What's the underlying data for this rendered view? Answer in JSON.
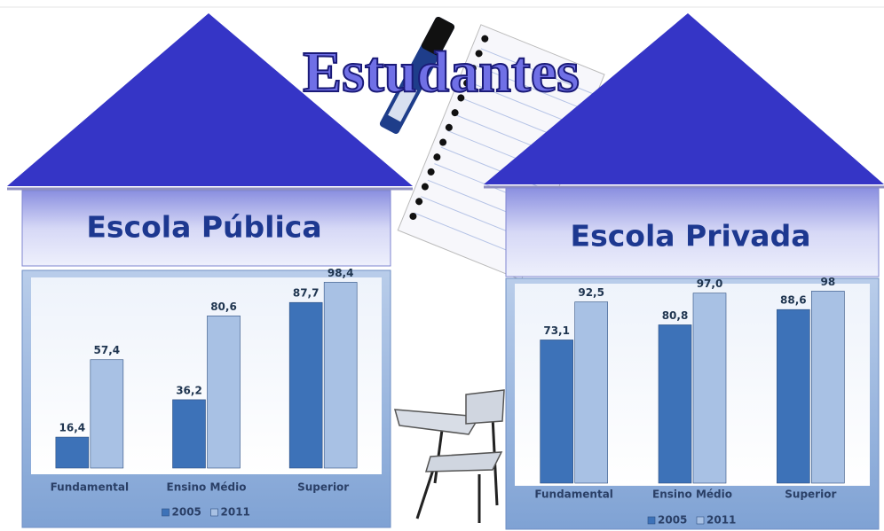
{
  "title": "Estudantes",
  "chart_data": [
    {
      "type": "bar",
      "title": "Escola Pública",
      "categories": [
        "Fundamental",
        "Ensino Médio",
        "Superior"
      ],
      "series": [
        {
          "name": "2005",
          "color": "#3d72b8",
          "values": [
            16.4,
            36.2,
            87.7
          ],
          "value_labels": [
            "16,4",
            "36,2",
            "87,7"
          ]
        },
        {
          "name": "2011",
          "color": "#a8c1e4",
          "values": [
            57.4,
            80.6,
            98.4
          ],
          "value_labels": [
            "57,4",
            "80,6",
            "98,4"
          ]
        }
      ],
      "ylim": [
        0,
        100
      ],
      "legend": "bottom"
    },
    {
      "type": "bar",
      "title": "Escola Privada",
      "categories": [
        "Fundamental",
        "Ensino Médio",
        "Superior"
      ],
      "series": [
        {
          "name": "2005",
          "color": "#3d72b8",
          "values": [
            73.1,
            80.8,
            88.6
          ],
          "value_labels": [
            "73,1",
            "80,8",
            "88,6"
          ]
        },
        {
          "name": "2011",
          "color": "#a8c1e4",
          "values": [
            92.5,
            97.0,
            98
          ],
          "value_labels": [
            "92,5",
            "97,0",
            "98"
          ]
        }
      ],
      "ylim": [
        0,
        100
      ],
      "legend": "bottom"
    }
  ]
}
